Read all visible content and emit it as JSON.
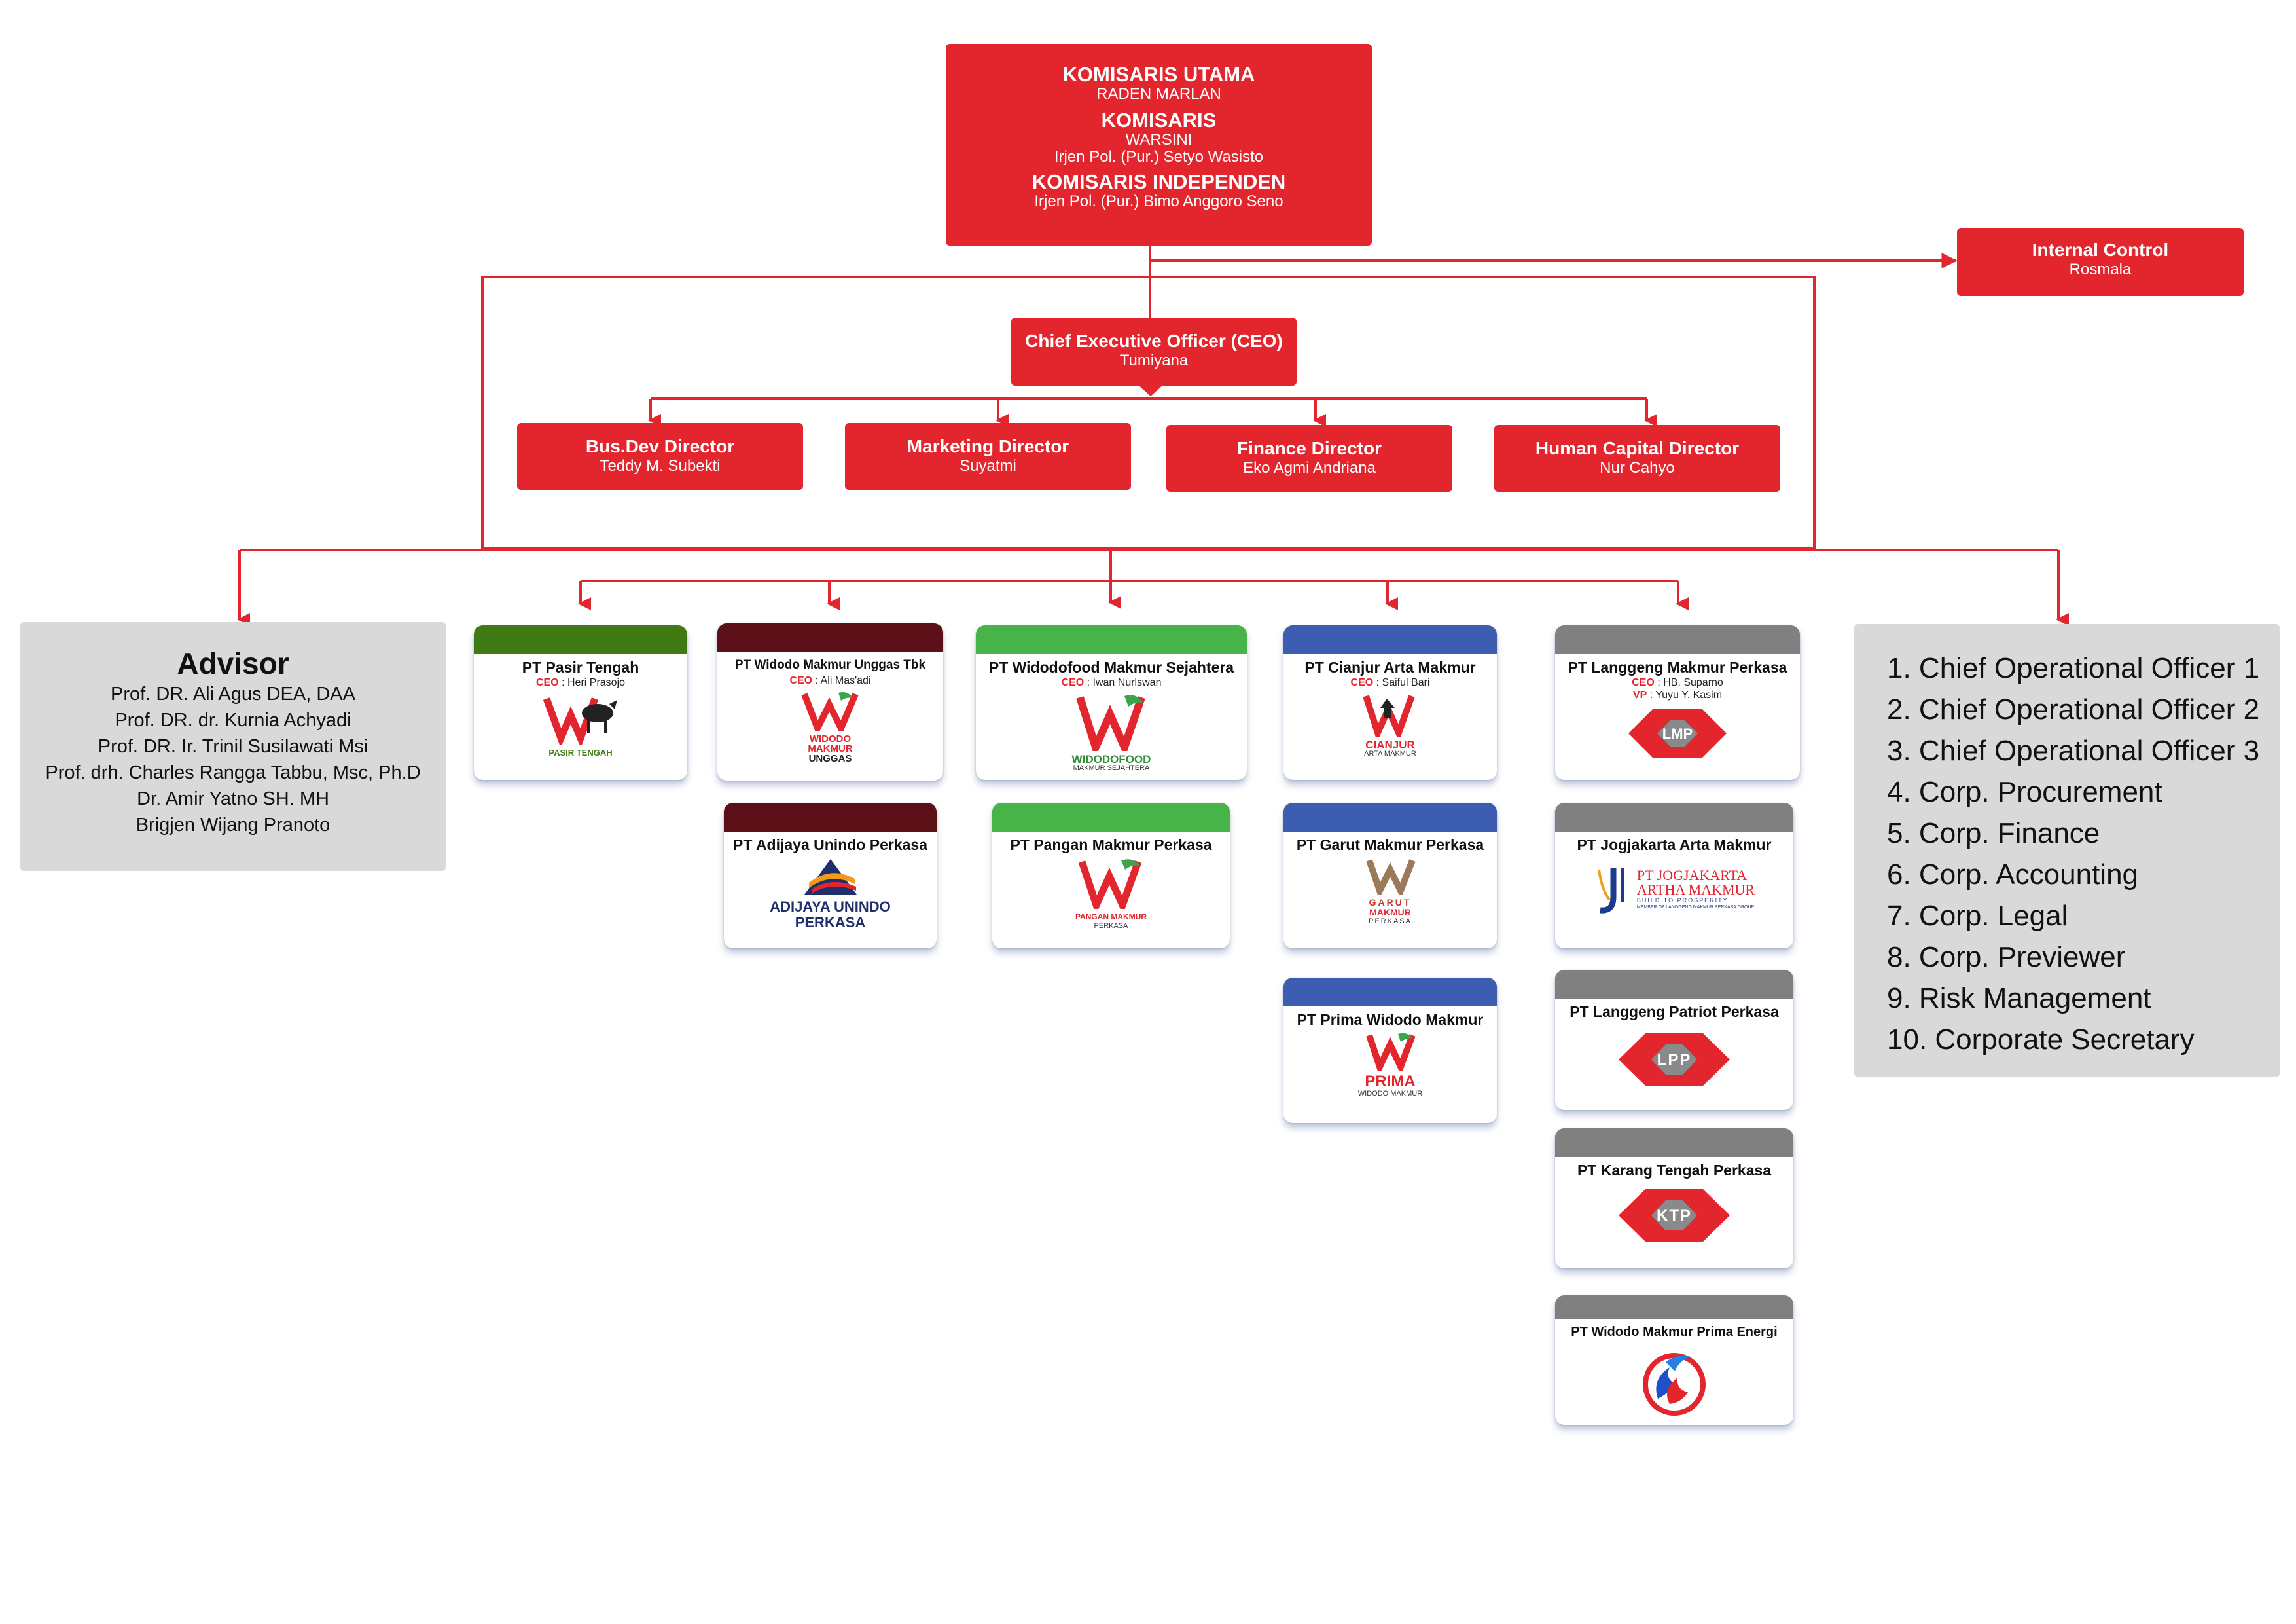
{
  "board": {
    "commissioner_title": "KOMISARIS UTAMA",
    "commissioner_name": "RADEN MARLAN",
    "commissioners_title": "KOMISARIS",
    "commissioners": [
      "WARSINI",
      "Irjen Pol. (Pur.) Setyo Wasisto"
    ],
    "independent_title": "KOMISARIS INDEPENDEN",
    "independent_name": "Irjen Pol. (Pur.) Bimo Anggoro Seno"
  },
  "internal_control": {
    "title": "Internal Control",
    "name": "Rosmala"
  },
  "ceo": {
    "title": "Chief Executive Officer (CEO)",
    "name": "Tumiyana"
  },
  "directors": [
    {
      "title": "Bus.Dev Director",
      "name": "Teddy M. Subekti"
    },
    {
      "title": "Marketing Director",
      "name": "Suyatmi"
    },
    {
      "title": "Finance Director",
      "name": "Eko Agmi Andriana"
    },
    {
      "title": "Human Capital Director",
      "name": "Nur Cahyo"
    }
  ],
  "advisor": {
    "title": "Advisor",
    "members": [
      "Prof. DR. Ali Agus DEA, DAA",
      "Prof. DR. dr. Kurnia Achyadi",
      "Prof. DR. Ir. Trinil Susilawati Msi",
      "Prof. drh. Charles Rangga Tabbu, Msc, Ph.D",
      "Dr. Amir Yatno SH. MH",
      "Brigjen Wijang Pranoto"
    ]
  },
  "units": [
    "1. Chief Operational Officer 1",
    "2. Chief Operational Officer 2",
    "3. Chief Operational Officer 3",
    "4. Corp. Procurement",
    "5. Corp. Finance",
    "6. Corp. Accounting",
    "7. Corp. Legal",
    "8. Corp. Previewer",
    "9. Risk Management",
    "10. Corporate Secretary"
  ],
  "ceo_label": "CEO",
  "vp_label": "VP",
  "colors": {
    "red": "#e3262e",
    "olive": "#3f7a12",
    "maroon": "#5b0f16",
    "green": "#47b44a",
    "blue": "#3c5db1",
    "gray": "#808080",
    "light_gray": "#d9d9d9"
  },
  "companies": {
    "pasir_tengah": {
      "name": "PT Pasir Tengah",
      "ceo": ": Heri Prasojo",
      "logo_text": "PASIR TENGAH"
    },
    "widodo_unggas": {
      "name": "PT Widodo Makmur Unggas Tbk",
      "ceo": ": Ali Mas'adi",
      "logo_text": [
        "WIDODO",
        "MAKMUR",
        "UNGGAS"
      ]
    },
    "adijaya": {
      "name": "PT Adijaya Unindo Perkasa",
      "logo_text": [
        "ADIJAYA UNINDO",
        "PERKASA"
      ]
    },
    "widodofood": {
      "name": "PT Widodofood Makmur Sejahtera",
      "ceo": ": Iwan Nurlswan",
      "logo_text": [
        "WIDODOFOOD",
        "MAKMUR SEJAHTERA"
      ]
    },
    "pangan": {
      "name": "PT Pangan Makmur Perkasa",
      "logo_text": [
        "PANGAN MAKMUR",
        "PERKASA"
      ]
    },
    "cianjur": {
      "name": "PT Cianjur Arta Makmur",
      "ceo": ": Saiful Bari",
      "logo_text": [
        "CIANJUR",
        "ARTA MAKMUR"
      ]
    },
    "garut": {
      "name": "PT Garut Makmur Perkasa",
      "logo_text": [
        "GARUT",
        "MAKMUR",
        "PERKASA"
      ]
    },
    "prima": {
      "name": "PT Prima Widodo Makmur",
      "logo_text": [
        "PRIMA",
        "WIDODO MAKMUR"
      ]
    },
    "langgeng": {
      "name": "PT Langgeng Makmur Perkasa",
      "ceo": ": HB. Suparno",
      "vp": ": Yuyu Y. Kasim",
      "logo_text": "LMP"
    },
    "jogjakarta": {
      "name": "PT Jogjakarta Arta Makmur",
      "logo_text": [
        "PT JOGJAKARTA",
        "ARTHA MAKMUR",
        "BUILD TO PROSPERITY",
        "MEMBER OF LANGGENG MAKMUR PERKASA GROUP"
      ]
    },
    "patriot": {
      "name": "PT Langgeng Patriot Perkasa",
      "logo_text": "LPP"
    },
    "karang": {
      "name": "PT Karang Tengah Perkasa",
      "logo_text": "KTP"
    },
    "energi": {
      "name": "PT Widodo Makmur Prima Energi"
    }
  }
}
